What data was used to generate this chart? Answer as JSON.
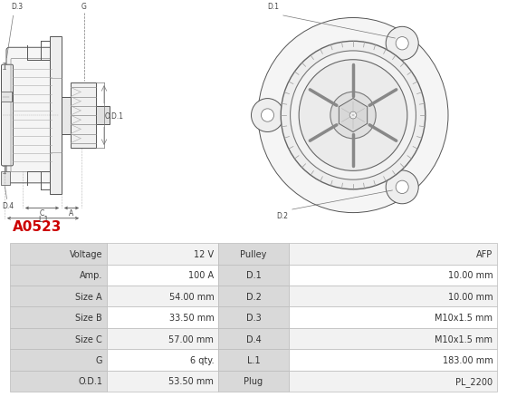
{
  "title": "A0523",
  "title_color": "#cc0000",
  "table_data": [
    [
      "Voltage",
      "12 V",
      "Pulley",
      "AFP"
    ],
    [
      "Amp.",
      "100 A",
      "D.1",
      "10.00 mm"
    ],
    [
      "Size A",
      "54.00 mm",
      "D.2",
      "10.00 mm"
    ],
    [
      "Size B",
      "33.50 mm",
      "D.3",
      "M10x1.5 mm"
    ],
    [
      "Size C",
      "57.00 mm",
      "D.4",
      "M10x1.5 mm"
    ],
    [
      "G",
      "6 qty.",
      "L.1",
      "183.00 mm"
    ],
    [
      "O.D.1",
      "53.50 mm",
      "Plug",
      "PL_2200"
    ]
  ],
  "header_bg": "#d9d9d9",
  "row_bg_odd": "#f2f2f2",
  "row_bg_even": "#ffffff",
  "border_color": "#bbbbbb",
  "text_color": "#333333",
  "image_bg": "#ffffff"
}
